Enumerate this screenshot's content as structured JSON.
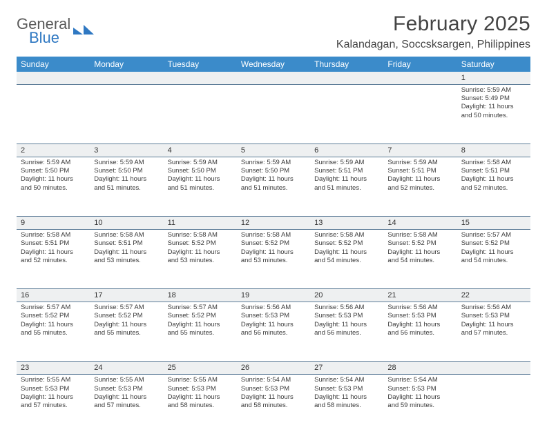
{
  "brand": {
    "word1": "General",
    "word2": "Blue",
    "mark_color": "#2f78c2"
  },
  "title": "February 2025",
  "location": "Kalandagan, Soccsksargen, Philippines",
  "header_bg": "#3b8bca",
  "dayname_color": "#ffffff",
  "rule_color": "#5a7a96",
  "daynum_bg": "#eef0f1",
  "text_color": "#3a3a3a",
  "day_names": [
    "Sunday",
    "Monday",
    "Tuesday",
    "Wednesday",
    "Thursday",
    "Friday",
    "Saturday"
  ],
  "weeks": [
    {
      "nums": [
        "",
        "",
        "",
        "",
        "",
        "",
        "1"
      ],
      "cells": [
        "",
        "",
        "",
        "",
        "",
        "",
        "Sunrise: 5:59 AM\nSunset: 5:49 PM\nDaylight: 11 hours and 50 minutes."
      ]
    },
    {
      "nums": [
        "2",
        "3",
        "4",
        "5",
        "6",
        "7",
        "8"
      ],
      "cells": [
        "Sunrise: 5:59 AM\nSunset: 5:50 PM\nDaylight: 11 hours and 50 minutes.",
        "Sunrise: 5:59 AM\nSunset: 5:50 PM\nDaylight: 11 hours and 51 minutes.",
        "Sunrise: 5:59 AM\nSunset: 5:50 PM\nDaylight: 11 hours and 51 minutes.",
        "Sunrise: 5:59 AM\nSunset: 5:50 PM\nDaylight: 11 hours and 51 minutes.",
        "Sunrise: 5:59 AM\nSunset: 5:51 PM\nDaylight: 11 hours and 51 minutes.",
        "Sunrise: 5:59 AM\nSunset: 5:51 PM\nDaylight: 11 hours and 52 minutes.",
        "Sunrise: 5:58 AM\nSunset: 5:51 PM\nDaylight: 11 hours and 52 minutes."
      ]
    },
    {
      "nums": [
        "9",
        "10",
        "11",
        "12",
        "13",
        "14",
        "15"
      ],
      "cells": [
        "Sunrise: 5:58 AM\nSunset: 5:51 PM\nDaylight: 11 hours and 52 minutes.",
        "Sunrise: 5:58 AM\nSunset: 5:51 PM\nDaylight: 11 hours and 53 minutes.",
        "Sunrise: 5:58 AM\nSunset: 5:52 PM\nDaylight: 11 hours and 53 minutes.",
        "Sunrise: 5:58 AM\nSunset: 5:52 PM\nDaylight: 11 hours and 53 minutes.",
        "Sunrise: 5:58 AM\nSunset: 5:52 PM\nDaylight: 11 hours and 54 minutes.",
        "Sunrise: 5:58 AM\nSunset: 5:52 PM\nDaylight: 11 hours and 54 minutes.",
        "Sunrise: 5:57 AM\nSunset: 5:52 PM\nDaylight: 11 hours and 54 minutes."
      ]
    },
    {
      "nums": [
        "16",
        "17",
        "18",
        "19",
        "20",
        "21",
        "22"
      ],
      "cells": [
        "Sunrise: 5:57 AM\nSunset: 5:52 PM\nDaylight: 11 hours and 55 minutes.",
        "Sunrise: 5:57 AM\nSunset: 5:52 PM\nDaylight: 11 hours and 55 minutes.",
        "Sunrise: 5:57 AM\nSunset: 5:52 PM\nDaylight: 11 hours and 55 minutes.",
        "Sunrise: 5:56 AM\nSunset: 5:53 PM\nDaylight: 11 hours and 56 minutes.",
        "Sunrise: 5:56 AM\nSunset: 5:53 PM\nDaylight: 11 hours and 56 minutes.",
        "Sunrise: 5:56 AM\nSunset: 5:53 PM\nDaylight: 11 hours and 56 minutes.",
        "Sunrise: 5:56 AM\nSunset: 5:53 PM\nDaylight: 11 hours and 57 minutes."
      ]
    },
    {
      "nums": [
        "23",
        "24",
        "25",
        "26",
        "27",
        "28",
        ""
      ],
      "cells": [
        "Sunrise: 5:55 AM\nSunset: 5:53 PM\nDaylight: 11 hours and 57 minutes.",
        "Sunrise: 5:55 AM\nSunset: 5:53 PM\nDaylight: 11 hours and 57 minutes.",
        "Sunrise: 5:55 AM\nSunset: 5:53 PM\nDaylight: 11 hours and 58 minutes.",
        "Sunrise: 5:54 AM\nSunset: 5:53 PM\nDaylight: 11 hours and 58 minutes.",
        "Sunrise: 5:54 AM\nSunset: 5:53 PM\nDaylight: 11 hours and 58 minutes.",
        "Sunrise: 5:54 AM\nSunset: 5:53 PM\nDaylight: 11 hours and 59 minutes.",
        ""
      ]
    }
  ]
}
